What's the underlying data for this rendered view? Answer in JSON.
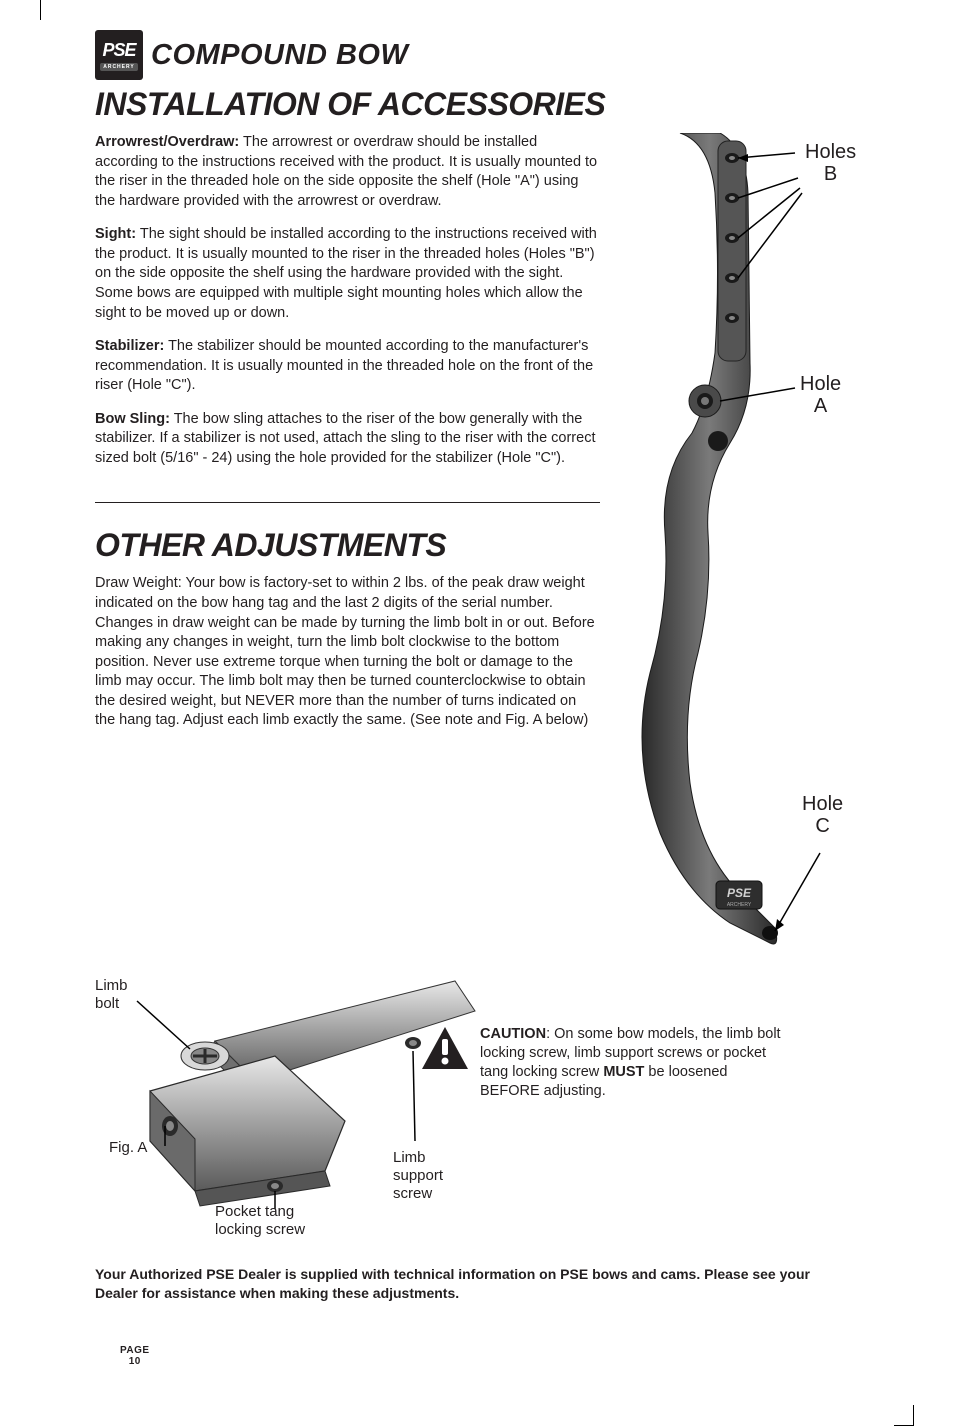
{
  "brand": {
    "logo_text": "PSE",
    "logo_sub": "ARCHERY",
    "title": "COMPOUND BOW"
  },
  "section1": {
    "heading": "INSTALLATION OF ACCESSORIES",
    "para1_bold": "Arrowrest/Overdraw:",
    "para1": " The arrowrest or overdraw should be installed according to the instructions received with the product. It is usually mounted to the riser in the threaded hole on the side opposite the shelf (Hole \"A\") using the hardware provided with the arrowrest or overdraw.",
    "para2_bold": "Sight:",
    "para2": " The sight should be installed according to the instructions received with the product. It is usually mounted to the riser in the threaded holes (Holes \"B\") on the side opposite the shelf using the hardware provided with the sight. Some bows are equipped with multiple sight mounting holes which allow the sight to be moved up or down.",
    "para3_bold": "Stabilizer:",
    "para3": " The stabilizer should be mounted according to the manufacturer's recommendation. It is usually mounted in the threaded hole on the front of the riser (Hole \"C\").",
    "para4_bold": "Bow Sling:",
    "para4": " The bow sling attaches to the riser of the bow generally with the stabilizer. If a stabilizer is not used, attach the sling to the riser with the correct sized bolt (5/16\" - 24) using the hole provided for the stabilizer (Hole \"C\")."
  },
  "section2": {
    "heading": "OTHER ADJUSTMENTS",
    "para": "Draw Weight: Your bow is factory-set to within 2 lbs. of the peak draw weight indicated on the bow hang tag and the last 2 digits of the serial number. Changes in draw weight can be made by turning the limb bolt in or out. Before making any changes in weight, turn the limb bolt clockwise to the bottom position. Never use extreme torque when turning the bolt or damage to the limb may occur. The limb bolt may then be turned counterclockwise to obtain the desired weight, but NEVER more than the number of turns indicated on the hang tag. Adjust each limb exactly the same. (See note and Fig. A below)"
  },
  "riser_labels": {
    "holes_b": "Holes\nB",
    "hole_a": "Hole\nA",
    "hole_c": "Hole\nC"
  },
  "figA": {
    "limb_bolt": "Limb\nbolt",
    "fig_a": "Fig. A",
    "pocket_tang": "Pocket tang\nlocking screw",
    "limb_support": "Limb\nsupport\nscrew"
  },
  "caution": {
    "bold1": "CAUTION",
    "text1": ": On some bow models, the limb bolt locking screw, limb support screws or pocket tang locking screw ",
    "bold2": "MUST",
    "text2": " be loosened BEFORE adjusting."
  },
  "footer": "Your Authorized PSE Dealer is supplied with technical information on PSE bows and cams. Please see your Dealer for assistance when making these adjustments.",
  "page_label": "PAGE",
  "page_number": "10",
  "colors": {
    "text": "#231f20",
    "riser_dark": "#3a3a3a",
    "riser_mid": "#6b6b6b",
    "riser_light": "#9a9a9a",
    "figa_hi": "#c8c8c8",
    "figa_mid": "#888888",
    "figa_dark": "#4a4a4a"
  }
}
